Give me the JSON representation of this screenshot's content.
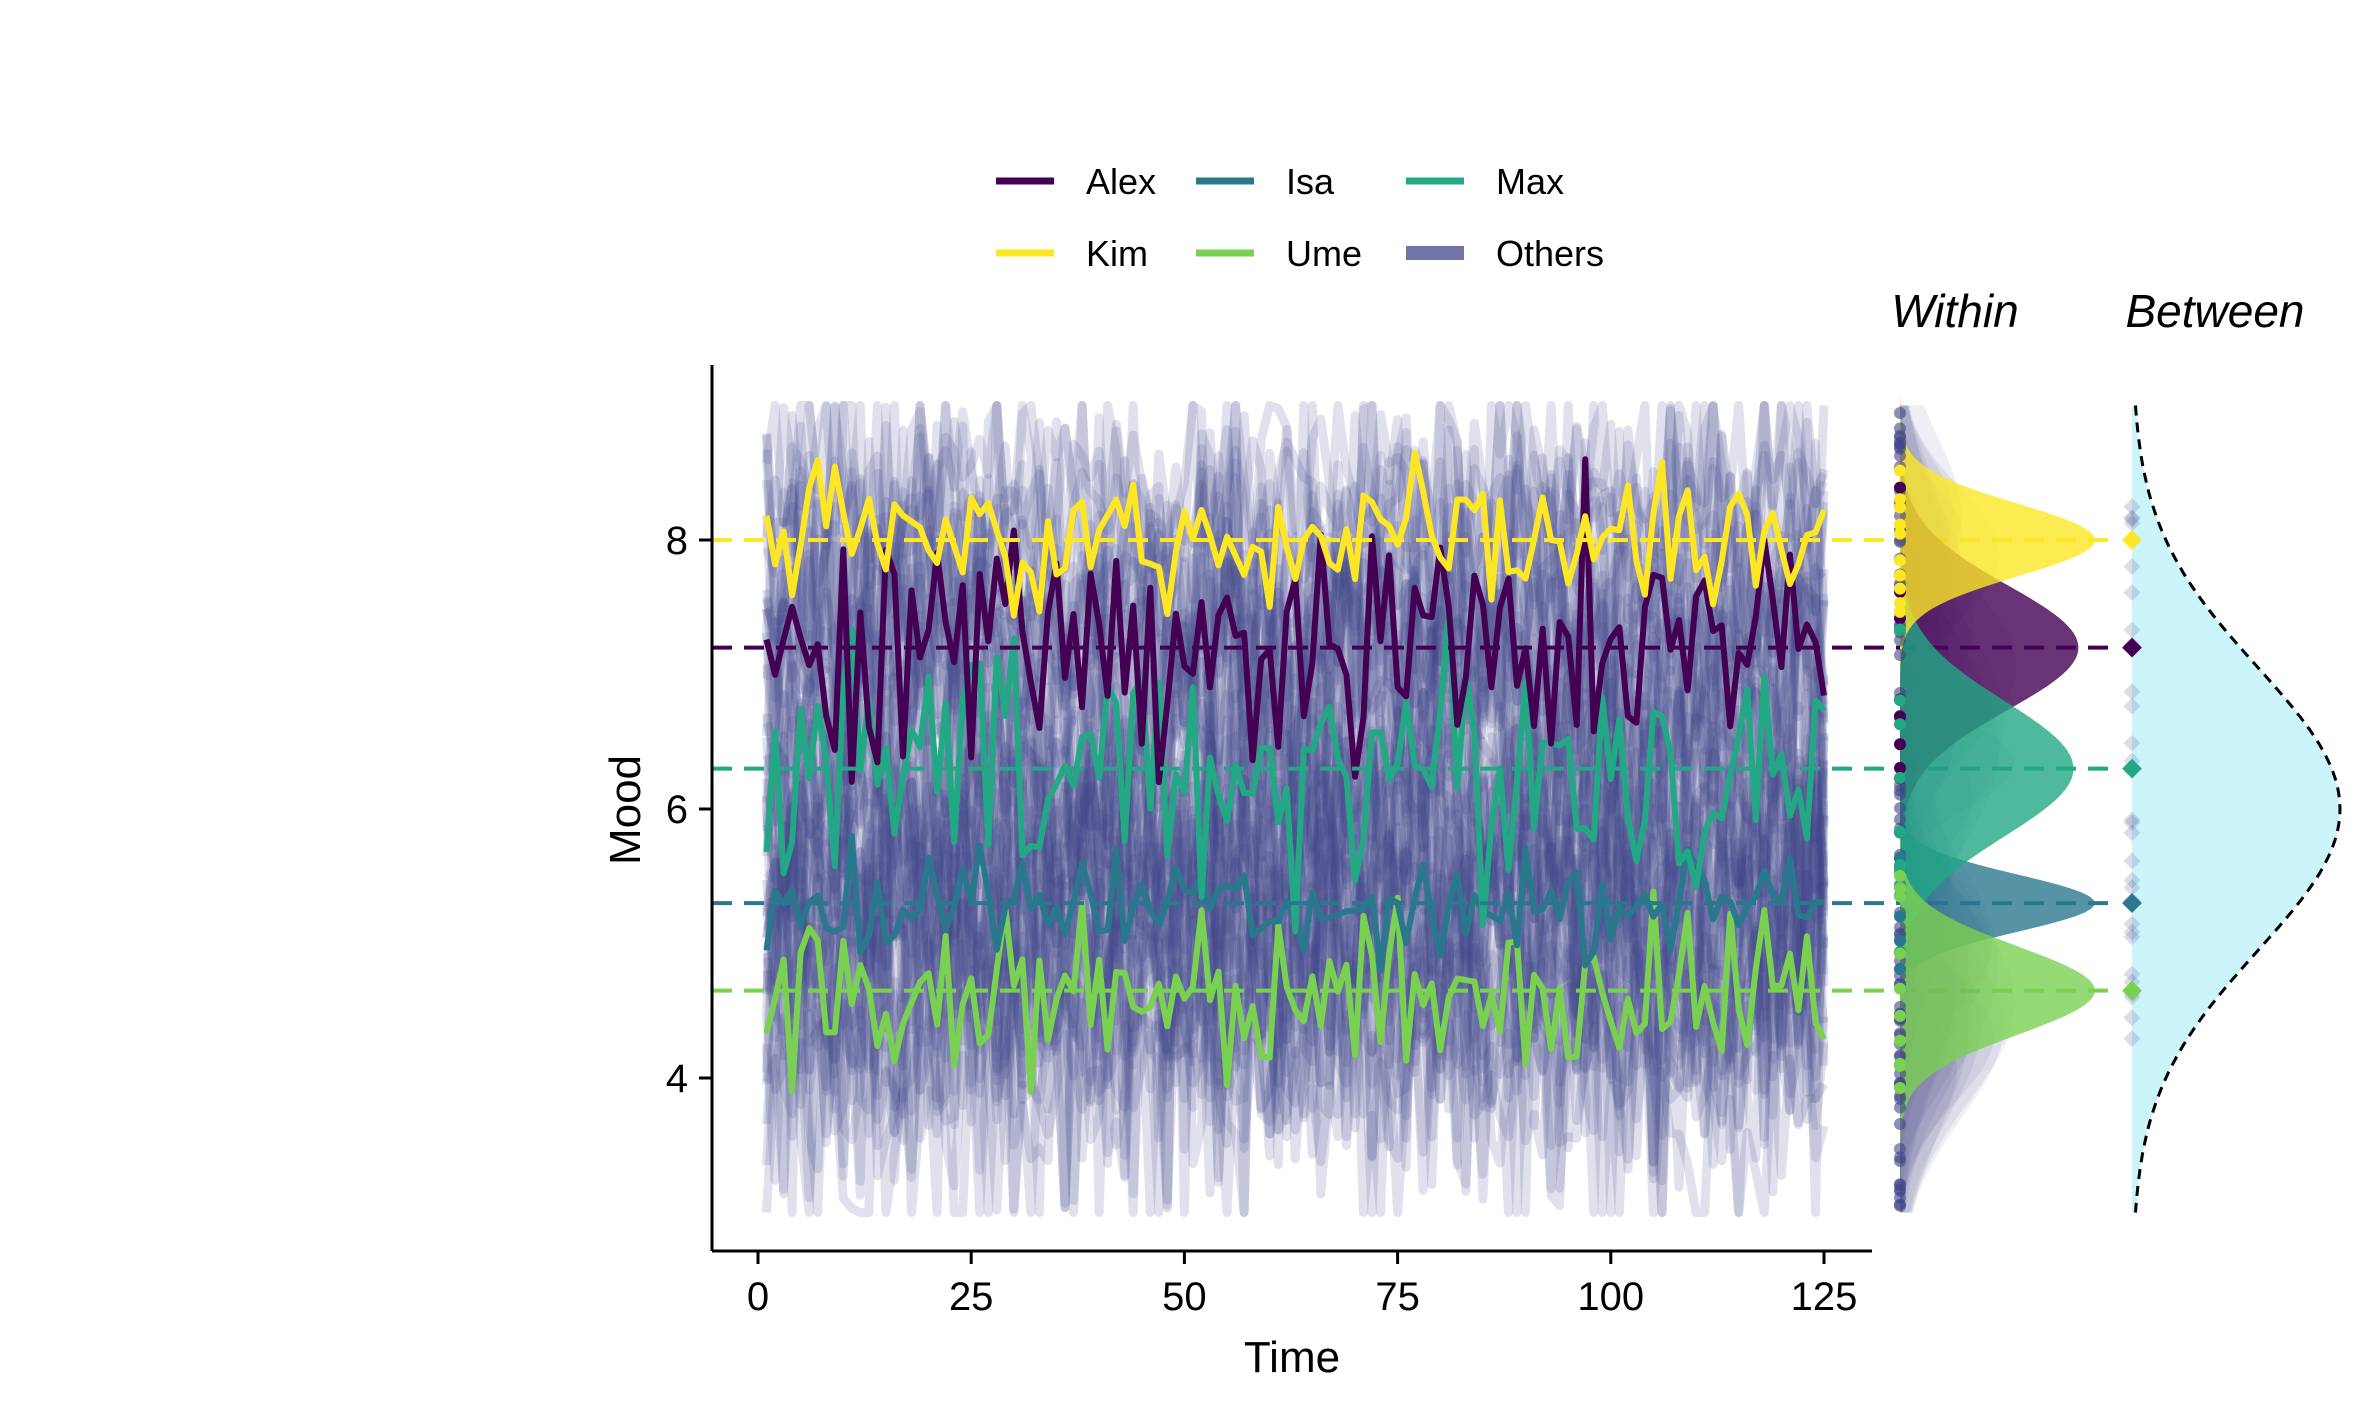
{
  "chart_data": {
    "type": "line",
    "xlabel": "Time",
    "ylabel": "Mood",
    "xlim": [
      -5,
      131
    ],
    "ylim": [
      2.85,
      9.3
    ],
    "xticks": [
      0,
      25,
      50,
      75,
      100,
      125
    ],
    "yticks": [
      4,
      6,
      8
    ],
    "legend_position": "top",
    "panel_titles": [
      "Within",
      "Between"
    ],
    "n_timepoints": 125,
    "others": {
      "name": "Others",
      "color": "#414487",
      "n_individuals": 60,
      "mean_range": [
        4.0,
        8.3
      ],
      "value_range": [
        3.0,
        9.0
      ]
    },
    "series": [
      {
        "name": "Alex",
        "color": "#440154",
        "mean": 7.2,
        "min": 6.2,
        "max": 8.6
      },
      {
        "name": "Isa",
        "color": "#2A788E",
        "mean": 5.3,
        "min": 4.8,
        "max": 5.9
      },
      {
        "name": "Max",
        "color": "#22A884",
        "mean": 6.3,
        "min": 4.9,
        "max": 7.5
      },
      {
        "name": "Kim",
        "color": "#FDE725",
        "mean": 8.0,
        "min": 7.3,
        "max": 8.7
      },
      {
        "name": "Ume",
        "color": "#7AD151",
        "mean": 4.65,
        "min": 3.9,
        "max": 5.6
      }
    ],
    "between_density": {
      "peak_at": 6.0,
      "range": [
        3.0,
        9.0
      ]
    }
  },
  "legend": [
    {
      "label": "Alex",
      "color": "#440154"
    },
    {
      "label": "Isa",
      "color": "#2A788E"
    },
    {
      "label": "Max",
      "color": "#22A884"
    },
    {
      "label": "Kim",
      "color": "#FDE725"
    },
    {
      "label": "Ume",
      "color": "#7AD151"
    },
    {
      "label": "Others",
      "color": "#414487"
    }
  ]
}
